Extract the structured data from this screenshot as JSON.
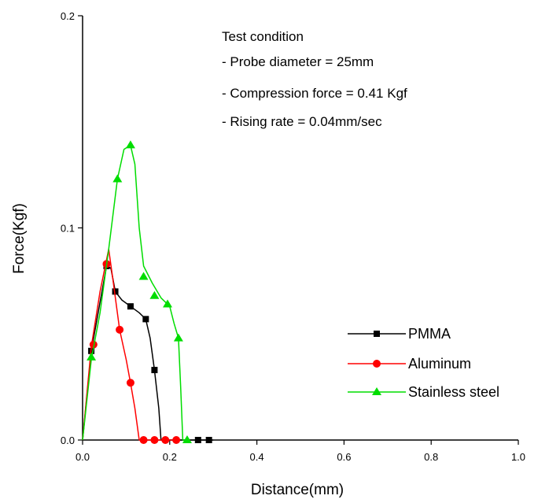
{
  "chart_data": {
    "type": "line",
    "xlabel": "Distance(mm)",
    "ylabel": "Force(Kgf)",
    "xlim": [
      0.0,
      1.0
    ],
    "ylim": [
      0.0,
      0.2
    ],
    "x_ticks": [
      "0.0",
      "0.2",
      "0.4",
      "0.6",
      "0.8",
      "1.0"
    ],
    "y_ticks": [
      "0.0",
      "0.1",
      "0.2"
    ],
    "grid": false,
    "legend_position": "bottom-right",
    "annotation": {
      "heading": "Test condition",
      "lines": [
        "- Probe diameter = 25mm",
        "- Compression force = 0.41 Kgf",
        "- Rising rate = 0.04mm/sec"
      ]
    },
    "series": [
      {
        "name": "PMMA",
        "color": "#000000",
        "marker": "square",
        "line": [
          [
            0.0,
            0.0
          ],
          [
            0.02,
            0.042
          ],
          [
            0.04,
            0.065
          ],
          [
            0.055,
            0.082
          ],
          [
            0.065,
            0.081
          ],
          [
            0.075,
            0.07
          ],
          [
            0.09,
            0.066
          ],
          [
            0.11,
            0.063
          ],
          [
            0.13,
            0.06
          ],
          [
            0.145,
            0.057
          ],
          [
            0.155,
            0.048
          ],
          [
            0.165,
            0.033
          ],
          [
            0.175,
            0.015
          ],
          [
            0.18,
            0.0
          ],
          [
            0.26,
            0.0
          ],
          [
            0.3,
            0.0
          ]
        ],
        "markers": [
          [
            0.02,
            0.042
          ],
          [
            0.055,
            0.082
          ],
          [
            0.075,
            0.07
          ],
          [
            0.11,
            0.063
          ],
          [
            0.145,
            0.057
          ],
          [
            0.165,
            0.033
          ],
          [
            0.265,
            0.0
          ],
          [
            0.29,
            0.0
          ]
        ]
      },
      {
        "name": "Aluminum",
        "color": "#ff0000",
        "marker": "circle",
        "line": [
          [
            0.0,
            0.0
          ],
          [
            0.02,
            0.044
          ],
          [
            0.04,
            0.07
          ],
          [
            0.06,
            0.09
          ],
          [
            0.07,
            0.075
          ],
          [
            0.085,
            0.052
          ],
          [
            0.1,
            0.038
          ],
          [
            0.11,
            0.027
          ],
          [
            0.12,
            0.015
          ],
          [
            0.13,
            0.0
          ],
          [
            0.22,
            0.0
          ]
        ],
        "markers": [
          [
            0.025,
            0.045
          ],
          [
            0.055,
            0.083
          ],
          [
            0.085,
            0.052
          ],
          [
            0.11,
            0.027
          ],
          [
            0.14,
            0.0
          ],
          [
            0.165,
            0.0
          ],
          [
            0.19,
            0.0
          ],
          [
            0.215,
            0.0
          ]
        ]
      },
      {
        "name": "Stainless steel",
        "color": "#00dd00",
        "marker": "triangle",
        "line": [
          [
            0.0,
            0.0
          ],
          [
            0.02,
            0.038
          ],
          [
            0.04,
            0.06
          ],
          [
            0.06,
            0.09
          ],
          [
            0.08,
            0.123
          ],
          [
            0.095,
            0.137
          ],
          [
            0.11,
            0.139
          ],
          [
            0.12,
            0.13
          ],
          [
            0.13,
            0.1
          ],
          [
            0.14,
            0.082
          ],
          [
            0.16,
            0.074
          ],
          [
            0.18,
            0.067
          ],
          [
            0.2,
            0.063
          ],
          [
            0.21,
            0.055
          ],
          [
            0.22,
            0.048
          ],
          [
            0.225,
            0.025
          ],
          [
            0.23,
            0.0
          ],
          [
            0.24,
            0.0
          ]
        ],
        "markers": [
          [
            0.02,
            0.039
          ],
          [
            0.08,
            0.123
          ],
          [
            0.11,
            0.139
          ],
          [
            0.14,
            0.077
          ],
          [
            0.165,
            0.068
          ],
          [
            0.195,
            0.064
          ],
          [
            0.22,
            0.048
          ],
          [
            0.24,
            0.0
          ]
        ]
      }
    ]
  }
}
